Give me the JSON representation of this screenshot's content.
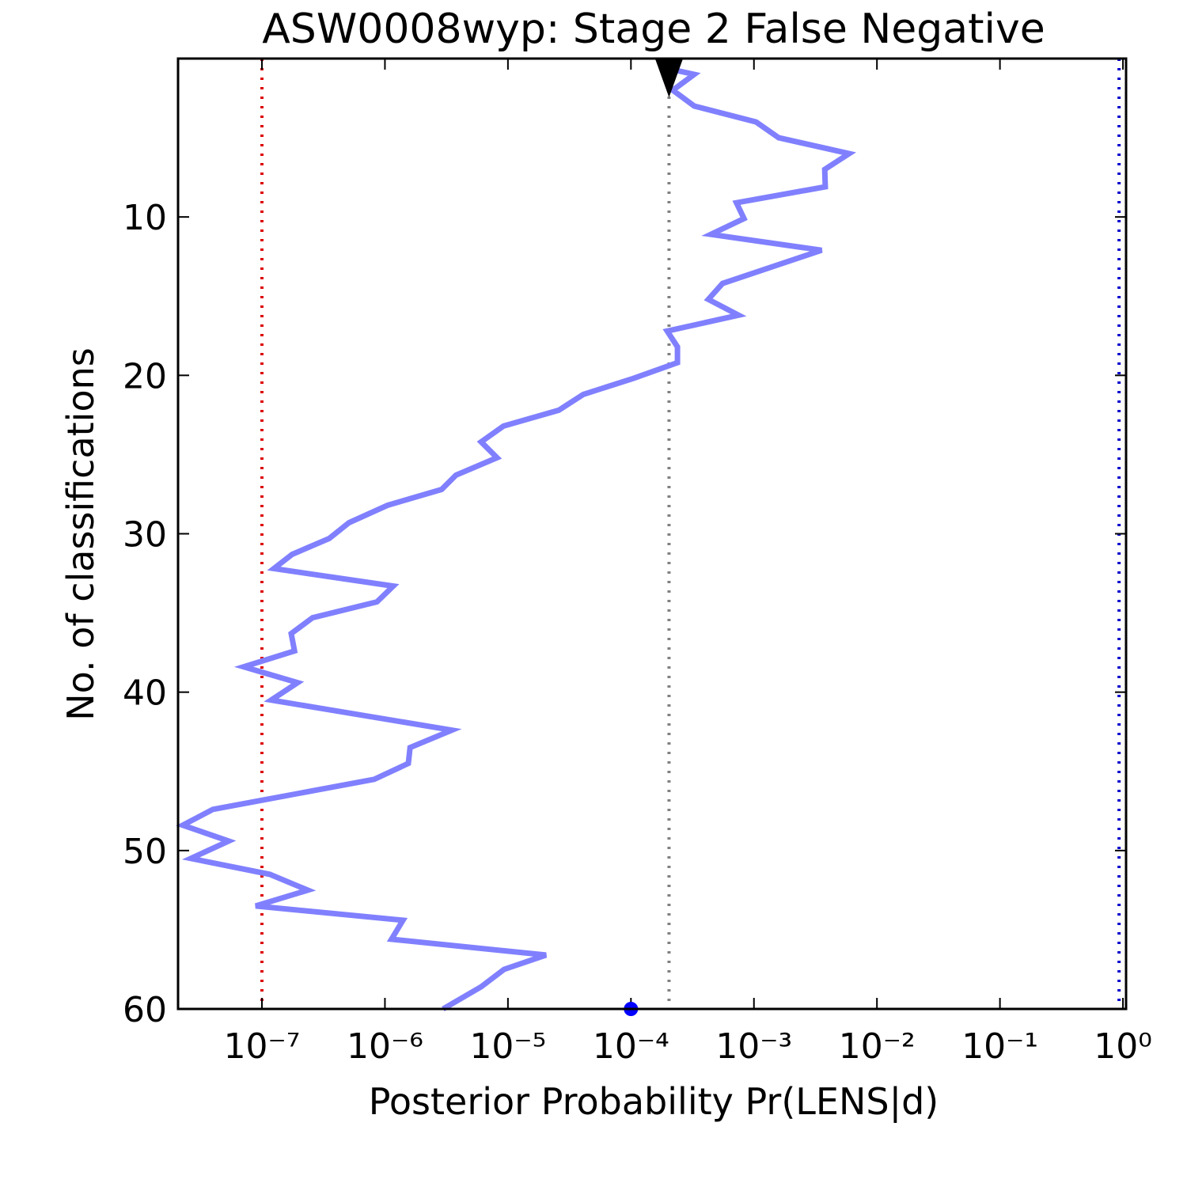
{
  "chart_data": {
    "type": "line",
    "title": "ASW0008wyp: Stage 2 False Negative",
    "xlabel": "Posterior Probability Pr(LENS|d)",
    "ylabel": "No. of classifications",
    "xscale": "log",
    "xlim": [
      2.08e-08,
      1.06
    ],
    "ylim": [
      60,
      0
    ],
    "xticks": [
      {
        "value": 1e-07,
        "label": "10⁻⁷"
      },
      {
        "value": 1e-06,
        "label": "10⁻⁶"
      },
      {
        "value": 1e-05,
        "label": "10⁻⁵"
      },
      {
        "value": 0.0001,
        "label": "10⁻⁴"
      },
      {
        "value": 0.001,
        "label": "10⁻³"
      },
      {
        "value": 0.01,
        "label": "10⁻²"
      },
      {
        "value": 0.1,
        "label": "10⁻¹"
      },
      {
        "value": 1,
        "label": "10⁰"
      }
    ],
    "yticks": [
      10,
      20,
      30,
      40,
      50,
      60
    ],
    "color": "#8080ff",
    "x": [
      2.97e-06,
      6.05e-06,
      9.3e-06,
      2.04e-05,
      1.13e-06,
      1.4e-06,
      8.9e-08,
      2.36e-07,
      1.16e-07,
      2.64e-08,
      5.37e-08,
      2.27e-08,
      3.99e-08,
      8.2e-07,
      1.55e-06,
      1.6e-06,
      3.5e-06,
      1.19e-07,
      1.95e-07,
      7.1e-08,
      1.84e-07,
      1.73e-07,
      2.58e-07,
      8.6e-07,
      1.17e-06,
      1.25e-07,
      1.76e-07,
      3.52e-07,
      5.1e-07,
      1.05e-06,
      2.89e-06,
      3.78e-06,
      8.15e-06,
      6.05e-06,
      9.2e-06,
      2.59e-05,
      4.1e-05,
      0.000104,
      0.000239,
      0.000239,
      0.000197,
      0.00075,
      0.000426,
      0.000556,
      0.00355,
      0.000446,
      0.00083,
      0.00072,
      0.0038,
      0.00376,
      0.00595,
      0.00159,
      0.00104,
      0.000327,
      0.000219,
      0.000327,
      0.000219
    ],
    "values": [
      60,
      58.6,
      57.5,
      56.6,
      55.6,
      54.4,
      53.5,
      52.5,
      51.5,
      50.5,
      49.4,
      48.4,
      47.4,
      45.5,
      44.5,
      43.5,
      42.4,
      40.5,
      39.4,
      38.4,
      37.4,
      36.3,
      35.3,
      34.3,
      33.3,
      32.2,
      31.3,
      30.3,
      29.3,
      28.2,
      27.2,
      26.3,
      25.2,
      24.2,
      23.2,
      22.2,
      21.2,
      20.2,
      19.2,
      18.2,
      17.2,
      16.2,
      15.2,
      14.2,
      12.1,
      11.1,
      10.1,
      9.1,
      8.1,
      7.0,
      6.0,
      5.0,
      4.0,
      3.0,
      2.0,
      1.0,
      0.7
    ],
    "vlines": [
      {
        "value": 1e-07,
        "color": "#dd0000"
      },
      {
        "value": 0.000204,
        "color": "#808080"
      },
      {
        "value": 0.93,
        "color": "#0000cc"
      }
    ],
    "markers": [
      {
        "shape": "triangle-down",
        "x": 0.000204,
        "y": 1.2,
        "color": "#000000"
      },
      {
        "shape": "circle",
        "x": 0.0001,
        "y": 60,
        "color": "#0000ff"
      }
    ]
  }
}
